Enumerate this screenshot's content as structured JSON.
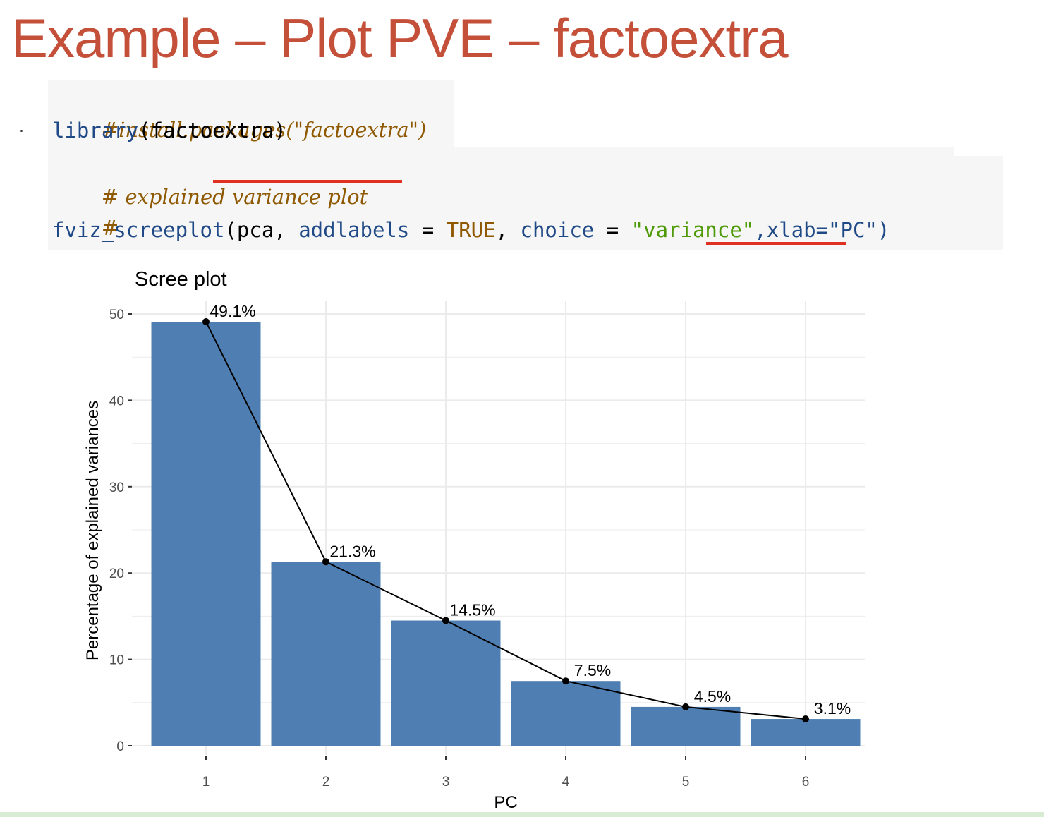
{
  "slide": {
    "title": "Example – Plot PVE – factoextra",
    "title_color": "#c4503a"
  },
  "code": {
    "line1": "#install.packages(\"factoextra\")",
    "line2_fn": "library",
    "line2_rest": "(factoextra)",
    "line3": "# explained variance plot",
    "line4": "#",
    "line5_fn": "fviz_screeplot",
    "line5_a": "(pca, ",
    "line5_arg1": "addlabels",
    "line5_eq1": " = ",
    "line5_true": "TRUE",
    "line5_comma": ", ",
    "line5_arg2": "choice",
    "line5_eq2": " = ",
    "line5_str": "\"variance\"",
    "line5_tail": ",xlab=\"PC\")",
    "colors": {
      "comment": "#8f5902",
      "keyword": "#204a87",
      "string": "#4e9a06",
      "constant": "#c4a000",
      "text": "#000000",
      "underline": "#e03020"
    }
  },
  "chart_data": {
    "type": "bar",
    "title": "Scree plot",
    "xlabel": "PC",
    "ylabel": "Percentage of explained variances",
    "categories": [
      "1",
      "2",
      "3",
      "4",
      "5",
      "6"
    ],
    "values": [
      49.1,
      21.3,
      14.5,
      7.5,
      4.5,
      3.1
    ],
    "labels": [
      "49.1%",
      "21.3%",
      "14.5%",
      "7.5%",
      "4.5%",
      "3.1%"
    ],
    "yticks": [
      0,
      10,
      20,
      30,
      40,
      50
    ],
    "ytick_labels": [
      "0",
      "10",
      "20",
      "30",
      "40",
      "50"
    ],
    "ylim": [
      0,
      50
    ],
    "line_overlay": true,
    "grid": true,
    "bar_color": "#4f7fb2",
    "line_color": "#000000",
    "panel_background": "#ffffff",
    "grid_color": "#ebebeb"
  }
}
